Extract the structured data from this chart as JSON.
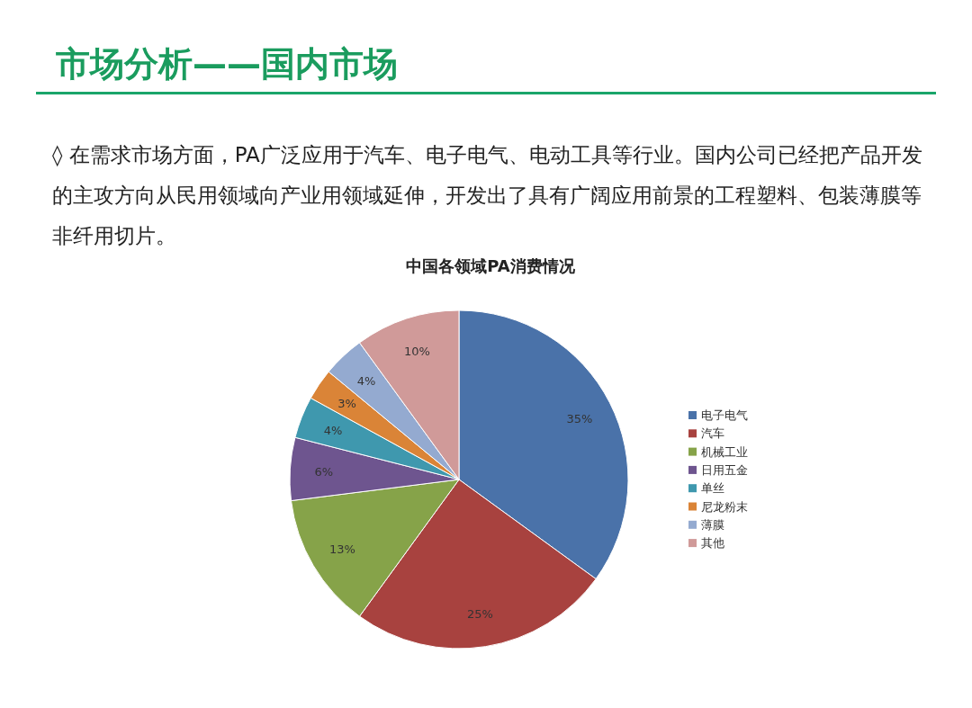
{
  "chart_data": {
    "type": "pie",
    "title": "中国各领域PA消费情况",
    "annotations": [
      "市场分析——国内市场",
      "◊ 在需求市场方面，PA广泛应用于汽车、电子电气、电动工具等行业。国内公司已经把产品开发的主攻方向从民用领域向产业用领域延伸，开发出了具有广阔应用前景的工程塑料、包装薄膜等非纤用切片。"
    ],
    "categories": [
      "电子电气",
      "汽车",
      "机械工业",
      "日用五金",
      "单丝",
      "尼龙粉末",
      "薄膜",
      "其他"
    ],
    "values": [
      35,
      25,
      13,
      6,
      4,
      3,
      4,
      10
    ],
    "colors": [
      "#4a72a9",
      "#a8423f",
      "#86a349",
      "#6e558f",
      "#3f98ae",
      "#da8437",
      "#94aad0",
      "#d09a99"
    ],
    "value_labels": [
      "35%",
      "25%",
      "13%",
      "6%",
      "4%",
      "3%",
      "4%",
      "10%"
    ],
    "legend": "right"
  }
}
